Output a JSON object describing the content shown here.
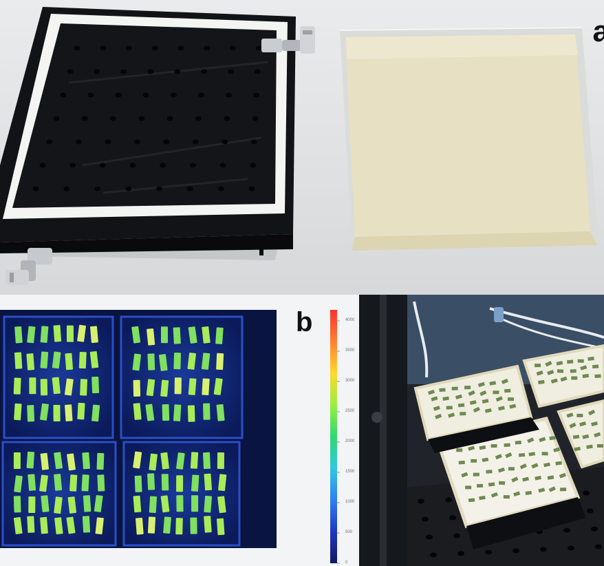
{
  "figure": {
    "panel_a": {
      "label": "a"
    },
    "panel_b": {
      "label": "b",
      "colorbar": {
        "ticks": [
          "4000",
          "3500",
          "3000",
          "2500",
          "2000",
          "1500",
          "1000",
          "500",
          "0"
        ],
        "colors": [
          "#ff3030",
          "#ff8030",
          "#ffd830",
          "#9aef40",
          "#30d870",
          "#30c8e0",
          "#3080f0",
          "#2038c0",
          "#101860"
        ]
      }
    },
    "panel_c": {}
  }
}
